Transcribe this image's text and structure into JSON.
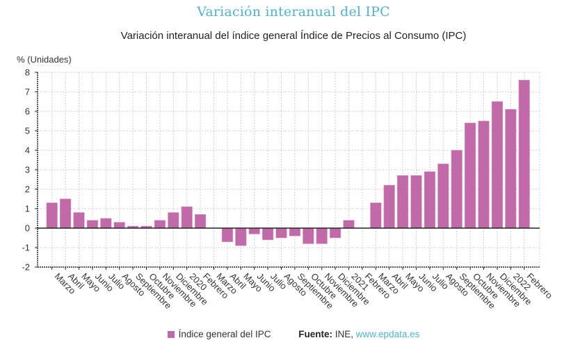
{
  "header": {
    "title": "Variación interanual del IPC",
    "subtitle": "Variación interanual del índice general Índice de Precios al Consumo (IPC)"
  },
  "legend": {
    "series_label": "Índice general del IPC",
    "source_label": "Fuente:",
    "source_text": "INE,",
    "source_link": "www.epdata.es"
  },
  "colors": {
    "bar": "#c06aa8",
    "title": "#4fb3cf",
    "link": "#4fb3cf"
  },
  "chart_data": {
    "type": "bar",
    "title": "Variación interanual del IPC",
    "subtitle": "Variación interanual del índice general Índice de Precios al Consumo (IPC)",
    "xlabel": "",
    "ylabel": "% (Unidades)",
    "ylim": [
      -2,
      8
    ],
    "yticks": [
      -2,
      -1,
      0,
      1,
      2,
      3,
      4,
      5,
      6,
      7,
      8
    ],
    "grid": true,
    "legend_position": "bottom",
    "categories": [
      "Marzo",
      "Abril",
      "Mayo",
      "Junio",
      "Julio",
      "Agosto",
      "Septiembre",
      "Octubre",
      "Noviembre",
      "Diciembre",
      "2020",
      "Febrero",
      "Marzo",
      "Abril",
      "Mayo",
      "Junio",
      "Julio",
      "Agosto",
      "Septiembre",
      "Octubre",
      "Noviembre",
      "Diciembre",
      "2021",
      "Febrero",
      "Marzo",
      "Abril",
      "Mayo",
      "Junio",
      "Julio",
      "Agosto",
      "Septiembre",
      "Octubre",
      "Noviembre",
      "Diciembre",
      "2022",
      "Febrero"
    ],
    "series": [
      {
        "name": "Índice general del IPC",
        "values": [
          1.3,
          1.5,
          0.8,
          0.4,
          0.5,
          0.3,
          0.1,
          0.1,
          0.4,
          0.8,
          1.1,
          0.7,
          0.0,
          -0.7,
          -0.9,
          -0.3,
          -0.6,
          -0.5,
          -0.4,
          -0.8,
          -0.8,
          -0.5,
          0.4,
          0.0,
          1.3,
          2.2,
          2.7,
          2.7,
          2.9,
          3.3,
          4.0,
          5.4,
          5.5,
          6.5,
          6.1,
          7.6
        ]
      }
    ],
    "source": "Fuente: INE, www.epdata.es"
  }
}
